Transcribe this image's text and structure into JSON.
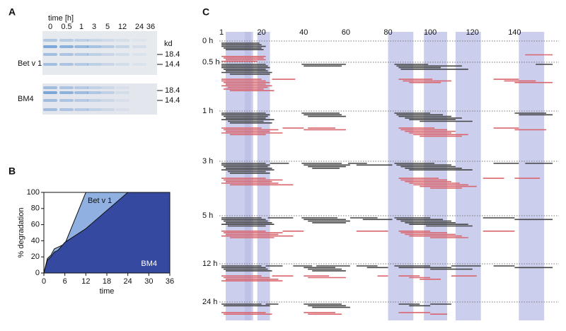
{
  "panel_labels": [
    "A",
    "B",
    "C"
  ],
  "gel": {
    "time_label": "time [h]",
    "times": [
      "0",
      "0.5",
      "1",
      "3",
      "5",
      "12",
      "24",
      "36"
    ],
    "kd_label": "kd",
    "lanes": [
      {
        "name": "Bet v 1",
        "markers": [
          "18.4",
          "14.4"
        ]
      },
      {
        "name": "BM4",
        "markers": [
          "18.4",
          "14.4"
        ]
      }
    ]
  },
  "chart_data": {
    "type": "area",
    "xlabel": "time",
    "ylabel": "% degradation",
    "x": [
      0,
      1,
      2,
      3,
      4,
      6,
      12,
      24,
      36
    ],
    "series": [
      {
        "name": "Bet v 1",
        "color": "#8fb0e0",
        "values": [
          0,
          18,
          22,
          30,
          32,
          36,
          100,
          100,
          100
        ]
      },
      {
        "name": "BM4",
        "color": "#34499f",
        "values": [
          0,
          16,
          20,
          26,
          28,
          38,
          55,
          100,
          100
        ]
      }
    ],
    "xlim": [
      0,
      36
    ],
    "xticks": [
      0,
      6,
      12,
      18,
      24,
      30,
      36
    ],
    "ylim": [
      0,
      100
    ],
    "yticks": [
      0,
      20,
      40,
      60,
      80,
      100
    ]
  },
  "peptide_map": {
    "xlim": [
      1,
      160
    ],
    "xticks": [
      1,
      20,
      40,
      60,
      80,
      100,
      120,
      140
    ],
    "highlight_color": "#b9bde6",
    "highlights": [
      [
        3,
        15
      ],
      [
        12,
        16
      ],
      [
        18,
        24
      ],
      [
        80,
        92
      ],
      [
        97,
        108
      ],
      [
        112,
        124
      ],
      [
        142,
        154
      ]
    ],
    "black_color": "#444444",
    "red_color": "#d9666e",
    "rows": [
      {
        "label": "0 h",
        "black": [
          [
            1,
            19
          ],
          [
            1,
            20
          ],
          [
            1,
            22
          ],
          [
            2,
            20
          ],
          [
            3,
            21
          ]
        ],
        "red": [
          [
            145,
            158
          ],
          [
            1,
            22
          ],
          [
            2,
            21
          ],
          [
            3,
            22
          ],
          [
            1,
            18
          ]
        ]
      },
      {
        "label": "0.5 h",
        "black": [
          [
            1,
            22
          ],
          [
            1,
            23
          ],
          [
            1,
            24
          ],
          [
            2,
            22
          ],
          [
            3,
            23
          ],
          [
            1,
            25
          ],
          [
            5,
            24
          ],
          [
            39,
            60
          ],
          [
            40,
            58
          ],
          [
            83,
            99
          ],
          [
            84,
            115
          ],
          [
            85,
            105
          ],
          [
            86,
            118
          ],
          [
            150,
            158
          ]
        ],
        "red": [
          [
            1,
            20
          ],
          [
            1,
            22
          ],
          [
            2,
            24
          ],
          [
            3,
            22
          ],
          [
            1,
            25
          ],
          [
            4,
            23
          ],
          [
            2,
            21
          ],
          [
            5,
            26
          ],
          [
            25,
            36
          ],
          [
            85,
            101
          ],
          [
            87,
            110
          ],
          [
            90,
            105
          ],
          [
            130,
            142
          ],
          [
            135,
            150
          ],
          [
            140,
            158
          ]
        ]
      },
      {
        "label": "1 h",
        "black": [
          [
            1,
            22
          ],
          [
            1,
            24
          ],
          [
            2,
            23
          ],
          [
            3,
            22
          ],
          [
            1,
            26
          ],
          [
            4,
            21
          ],
          [
            5,
            25
          ],
          [
            39,
            57
          ],
          [
            40,
            58
          ],
          [
            42,
            60
          ],
          [
            83,
            100
          ],
          [
            84,
            106
          ],
          [
            85,
            110
          ],
          [
            88,
            115
          ],
          [
            90,
            112
          ],
          [
            95,
            120
          ],
          [
            140,
            155
          ],
          [
            142,
            158
          ]
        ],
        "red": [
          [
            1,
            20
          ],
          [
            2,
            28
          ],
          [
            3,
            24
          ],
          [
            1,
            30
          ],
          [
            5,
            22
          ],
          [
            30,
            40
          ],
          [
            40,
            60
          ],
          [
            42,
            55
          ],
          [
            85,
            102
          ],
          [
            86,
            108
          ],
          [
            88,
            112
          ],
          [
            90,
            110
          ],
          [
            92,
            118
          ],
          [
            95,
            115
          ],
          [
            130,
            142
          ],
          [
            140,
            155
          ]
        ]
      },
      {
        "label": "3 h",
        "black": [
          [
            1,
            22
          ],
          [
            1,
            24
          ],
          [
            2,
            23
          ],
          [
            3,
            25
          ],
          [
            1,
            26
          ],
          [
            4,
            22
          ],
          [
            5,
            24
          ],
          [
            24,
            33
          ],
          [
            39,
            58
          ],
          [
            40,
            62
          ],
          [
            42,
            60
          ],
          [
            44,
            57
          ],
          [
            61,
            70
          ],
          [
            65,
            82
          ],
          [
            83,
            102
          ],
          [
            84,
            110
          ],
          [
            86,
            112
          ],
          [
            88,
            115
          ],
          [
            90,
            120
          ],
          [
            130,
            142
          ],
          [
            145,
            158
          ]
        ],
        "red": [
          [
            1,
            22
          ],
          [
            2,
            30
          ],
          [
            3,
            25
          ],
          [
            1,
            28
          ],
          [
            5,
            35
          ],
          [
            85,
            104
          ],
          [
            86,
            108
          ],
          [
            88,
            110
          ],
          [
            90,
            114
          ],
          [
            92,
            118
          ],
          [
            95,
            122
          ],
          [
            100,
            115
          ],
          [
            125,
            135
          ],
          [
            140,
            152
          ]
        ]
      },
      {
        "label": "5 h",
        "black": [
          [
            1,
            20
          ],
          [
            1,
            22
          ],
          [
            2,
            23
          ],
          [
            3,
            25
          ],
          [
            1,
            26
          ],
          [
            4,
            22
          ],
          [
            23,
            35
          ],
          [
            39,
            56
          ],
          [
            40,
            60
          ],
          [
            42,
            62
          ],
          [
            44,
            60
          ],
          [
            62,
            75
          ],
          [
            68,
            82
          ],
          [
            83,
            100
          ],
          [
            84,
            106
          ],
          [
            86,
            110
          ],
          [
            88,
            112
          ],
          [
            90,
            118
          ],
          [
            98,
            120
          ],
          [
            125,
            140
          ],
          [
            140,
            158
          ]
        ],
        "red": [
          [
            1,
            22
          ],
          [
            2,
            30
          ],
          [
            3,
            28
          ],
          [
            1,
            35
          ],
          [
            5,
            26
          ],
          [
            30,
            40
          ],
          [
            65,
            80
          ],
          [
            85,
            100
          ],
          [
            86,
            108
          ],
          [
            88,
            112
          ],
          [
            90,
            115
          ],
          [
            100,
            118
          ],
          [
            125,
            140
          ]
        ]
      },
      {
        "label": "12 h",
        "black": [
          [
            1,
            20
          ],
          [
            1,
            22
          ],
          [
            2,
            23
          ],
          [
            3,
            25
          ],
          [
            22,
            30
          ],
          [
            35,
            44
          ],
          [
            40,
            55
          ],
          [
            42,
            58
          ],
          [
            44,
            60
          ],
          [
            46,
            62
          ],
          [
            65,
            75
          ],
          [
            70,
            80
          ],
          [
            83,
            100
          ],
          [
            85,
            110
          ],
          [
            100,
            120
          ],
          [
            110,
            124
          ],
          [
            130,
            140
          ],
          [
            140,
            158
          ]
        ],
        "red": [
          [
            1,
            20
          ],
          [
            2,
            24
          ],
          [
            3,
            28
          ],
          [
            1,
            30
          ],
          [
            25,
            35
          ],
          [
            40,
            52
          ],
          [
            42,
            60
          ],
          [
            75,
            80
          ],
          [
            85,
            95
          ],
          [
            90,
            100
          ],
          [
            95,
            105
          ],
          [
            110,
            122
          ]
        ]
      },
      {
        "label": "24 h",
        "black": [
          [
            1,
            20
          ],
          [
            2,
            24
          ],
          [
            22,
            28
          ],
          [
            40,
            58
          ],
          [
            42,
            60
          ],
          [
            44,
            62
          ],
          [
            85,
            95
          ],
          [
            90,
            100
          ],
          [
            100,
            110
          ]
        ],
        "red": [
          [
            1,
            22
          ],
          [
            2,
            25
          ],
          [
            40,
            55
          ],
          [
            42,
            58
          ],
          [
            85,
            100
          ],
          [
            100,
            108
          ]
        ]
      }
    ]
  }
}
